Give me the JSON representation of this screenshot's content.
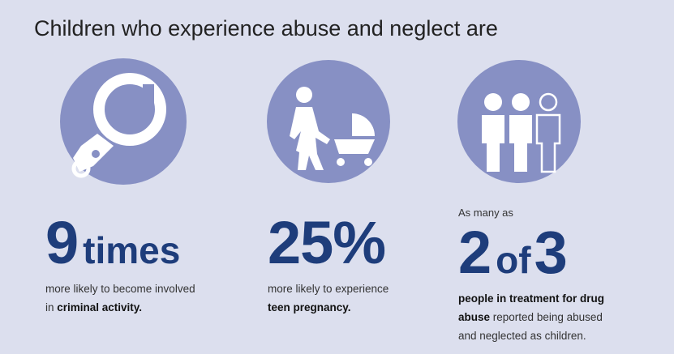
{
  "title": "Children who experience abuse and neglect are",
  "panels": [
    {
      "intro": null,
      "headline": [
        {
          "text": "9",
          "size": "big"
        },
        {
          "text": "times",
          "size": "small"
        }
      ],
      "lines": [
        [
          {
            "text": "more likely to become involved",
            "bold": false
          }
        ],
        [
          {
            "text": "in ",
            "bold": false
          },
          {
            "text": "criminal activity.",
            "bold": true
          }
        ]
      ]
    },
    {
      "intro": null,
      "headline": [
        {
          "text": "25%",
          "size": "big"
        }
      ],
      "lines": [
        [
          {
            "text": "more likely to experience",
            "bold": false
          }
        ],
        [
          {
            "text": "teen pregnancy.",
            "bold": true
          }
        ]
      ]
    },
    {
      "intro": "As many as",
      "headline": [
        {
          "text": "2",
          "size": "big"
        },
        {
          "text": "of",
          "size": "small"
        },
        {
          "text": "3",
          "size": "big"
        }
      ],
      "lines": [
        [
          {
            "text": "people in treatment for drug",
            "bold": true
          }
        ],
        [
          {
            "text": "abuse",
            "bold": true
          },
          {
            "text": " reported being abused",
            "bold": false
          }
        ],
        [
          {
            "text": "and neglected as children.",
            "bold": false
          }
        ]
      ]
    }
  ]
}
